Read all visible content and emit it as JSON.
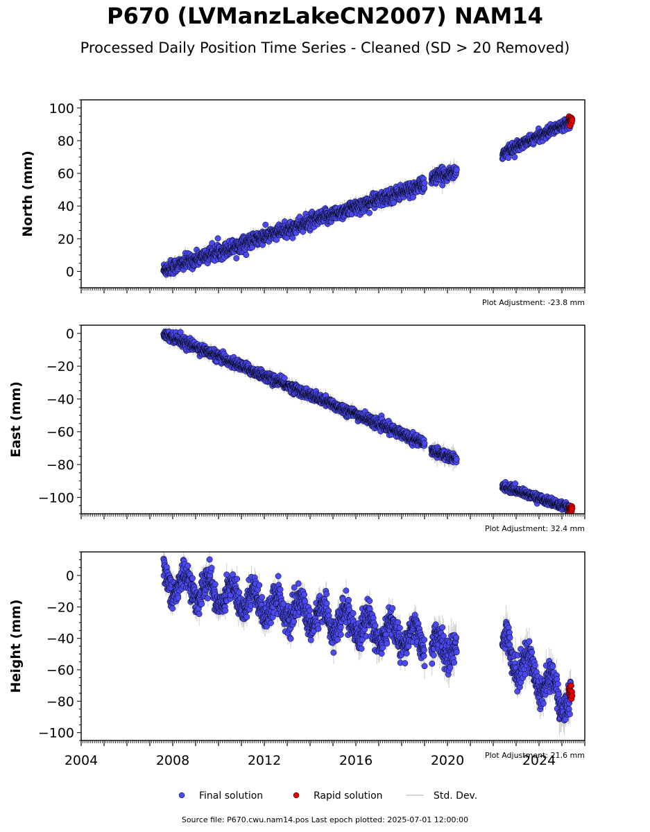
{
  "title": "P670 (LVManzLakeCN2007) NAM14",
  "subtitle": "Processed Daily Position Time Series - Cleaned (SD > 20 Removed)",
  "footer": "Source file: P670.cwu.nam14.pos  Last epoch plotted: 2025-07-01 12:00:00",
  "colors": {
    "final": "#4a4af0",
    "rapid": "#e00000",
    "stddev": "#c8c8c8",
    "edge": "#000000"
  },
  "chart_data": {
    "type": "scatter",
    "x_axis": {
      "range": [
        2004,
        2026
      ],
      "ticks": [
        2004,
        2008,
        2012,
        2016,
        2020,
        2024
      ],
      "tick_labels": [
        "2004",
        "2008",
        "2012",
        "2016",
        "2020",
        "2024"
      ]
    },
    "legend": {
      "placement": "bottom-center",
      "entries": [
        {
          "label": "Final solution",
          "marker": "circle",
          "color": "#4a4af0"
        },
        {
          "label": "Rapid solution",
          "marker": "circle",
          "color": "#e00000"
        },
        {
          "label": "Std. Dev.",
          "marker": "line",
          "color": "#c8c8c8"
        }
      ]
    },
    "panels": [
      {
        "ylabel": "North (mm)",
        "ylim": [
          -10,
          105
        ],
        "yticks": [
          0,
          20,
          40,
          60,
          80,
          100
        ],
        "adjustment": "Plot Adjustment: -23.8 mm",
        "final": [
          {
            "x": [
              2007.6,
              2019.0
            ],
            "y": [
              1,
              53
            ],
            "noise": 2.2,
            "std": 3
          },
          {
            "x": [
              2019.3,
              2020.4
            ],
            "y": [
              57,
              61
            ],
            "noise": 2.0,
            "std": 4
          },
          {
            "x": [
              2022.4,
              2025.4
            ],
            "y": [
              72,
              92
            ],
            "noise": 1.5,
            "std": 2
          }
        ],
        "rapid": {
          "x": [
            2025.3,
            2025.45
          ],
          "y": [
            92,
            93
          ],
          "noise": 1.2
        }
      },
      {
        "ylabel": "East (mm)",
        "ylim": [
          -110,
          5
        ],
        "yticks": [
          0,
          -20,
          -40,
          -60,
          -80,
          -100
        ],
        "adjustment": "Plot Adjustment: 32.4 mm",
        "final": [
          {
            "x": [
              2007.6,
              2019.0
            ],
            "y": [
              0,
              -67
            ],
            "noise": 1.5,
            "std": 3
          },
          {
            "x": [
              2019.3,
              2020.4
            ],
            "y": [
              -71,
              -77
            ],
            "noise": 1.5,
            "std": 4
          },
          {
            "x": [
              2022.4,
              2025.4
            ],
            "y": [
              -93,
              -107
            ],
            "noise": 1.2,
            "std": 2
          }
        ],
        "rapid": {
          "x": [
            2025.3,
            2025.45
          ],
          "y": [
            -107,
            -107.5
          ],
          "noise": 0.8
        }
      },
      {
        "ylabel": "Height (mm)",
        "ylim": [
          -105,
          15
        ],
        "yticks": [
          0,
          -20,
          -40,
          -60,
          -80,
          -100
        ],
        "adjustment": "Plot Adjustment: 21.6 mm",
        "final": [
          {
            "x": [
              2007.6,
              2019.0
            ],
            "y": [
              -3,
              -42
            ],
            "noise": 4.5,
            "std": 6,
            "seasonal": 8
          },
          {
            "x": [
              2019.3,
              2020.4
            ],
            "y": [
              -45,
              -47
            ],
            "noise": 5,
            "std": 8,
            "seasonal": 6
          },
          {
            "x": [
              2022.4,
              2025.4
            ],
            "y": [
              -45,
              -82
            ],
            "noise": 5,
            "std": 8,
            "seasonal": 9
          }
        ],
        "rapid": {
          "x": [
            2025.3,
            2025.45
          ],
          "y": [
            -72,
            -76
          ],
          "noise": 2.5
        }
      }
    ]
  }
}
